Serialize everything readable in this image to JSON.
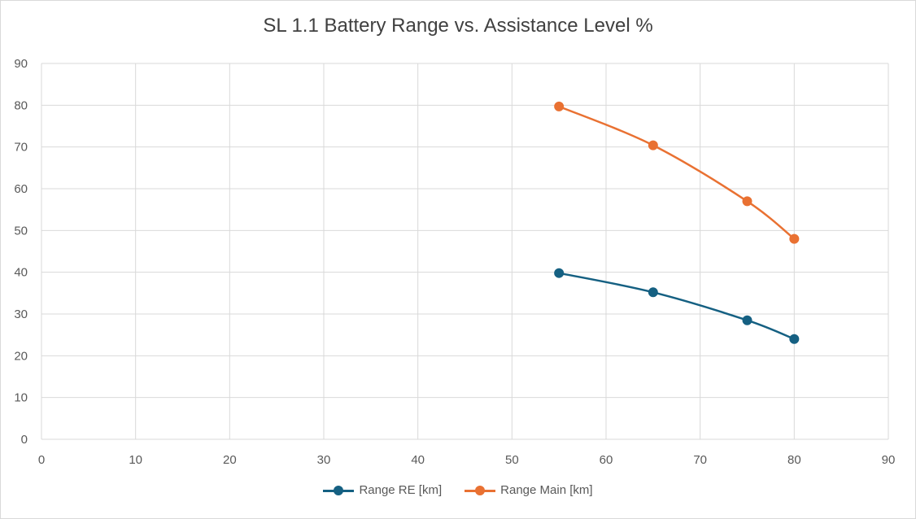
{
  "chart_data": {
    "type": "scatter",
    "title": "SL 1.1 Battery Range vs. Assistance Level %",
    "xlabel": "",
    "ylabel": "",
    "xlim": [
      0,
      90
    ],
    "ylim": [
      0,
      90
    ],
    "xticks": [
      "0",
      "10",
      "20",
      "30",
      "40",
      "50",
      "60",
      "70",
      "80",
      "90"
    ],
    "yticks": [
      "0",
      "10",
      "20",
      "30",
      "40",
      "50",
      "60",
      "70",
      "80",
      "90"
    ],
    "grid": true,
    "smooth": true,
    "legend_position": "bottom",
    "x": [
      55,
      65,
      75,
      80
    ],
    "series": [
      {
        "name": "Range RE [km]",
        "values": [
          39.8,
          35.2,
          28.5,
          24.0
        ],
        "color": "#156082"
      },
      {
        "name": "Range Main [km]",
        "values": [
          79.7,
          70.4,
          57.0,
          48.0
        ],
        "color": "#e97132"
      }
    ]
  }
}
